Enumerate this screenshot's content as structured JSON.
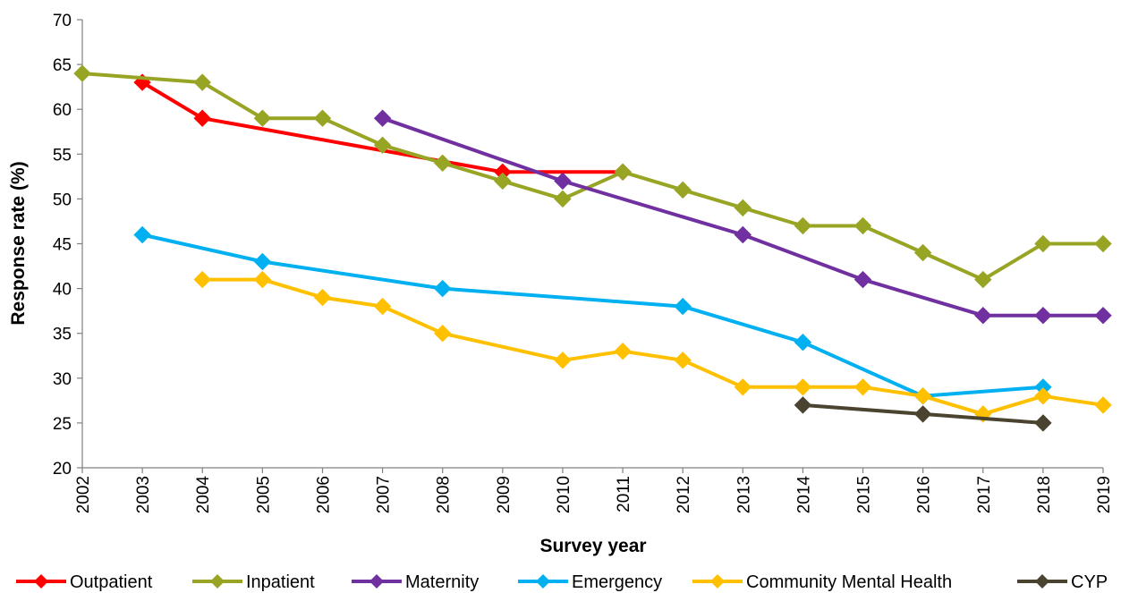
{
  "chart_data": {
    "type": "line",
    "xlabel": "Survey year",
    "ylabel": "Response rate (%)",
    "ylim": [
      20,
      70
    ],
    "yticks": [
      20,
      25,
      30,
      35,
      40,
      45,
      50,
      55,
      60,
      65,
      70
    ],
    "x": [
      "2002",
      "2003",
      "2004",
      "2005",
      "2006",
      "2007",
      "2008",
      "2009",
      "2010",
      "2011",
      "2012",
      "2013",
      "2014",
      "2015",
      "2016",
      "2017",
      "2018",
      "2019"
    ],
    "grid": false,
    "legend_position": "bottom",
    "series": [
      {
        "name": "Outpatient",
        "color": "#ff0000",
        "points": [
          {
            "x": "2003",
            "y": 63
          },
          {
            "x": "2004",
            "y": 59
          },
          {
            "x": "2009",
            "y": 53
          },
          {
            "x": "2011",
            "y": 53
          }
        ]
      },
      {
        "name": "Inpatient",
        "color": "#98a424",
        "points": [
          {
            "x": "2002",
            "y": 64
          },
          {
            "x": "2004",
            "y": 63
          },
          {
            "x": "2005",
            "y": 59
          },
          {
            "x": "2006",
            "y": 59
          },
          {
            "x": "2007",
            "y": 56
          },
          {
            "x": "2008",
            "y": 54
          },
          {
            "x": "2009",
            "y": 52
          },
          {
            "x": "2010",
            "y": 50
          },
          {
            "x": "2011",
            "y": 53
          },
          {
            "x": "2012",
            "y": 51
          },
          {
            "x": "2013",
            "y": 49
          },
          {
            "x": "2014",
            "y": 47
          },
          {
            "x": "2015",
            "y": 47
          },
          {
            "x": "2016",
            "y": 44
          },
          {
            "x": "2017",
            "y": 41
          },
          {
            "x": "2018",
            "y": 45
          },
          {
            "x": "2019",
            "y": 45
          }
        ]
      },
      {
        "name": "Maternity",
        "color": "#7030a0",
        "points": [
          {
            "x": "2007",
            "y": 59
          },
          {
            "x": "2010",
            "y": 52
          },
          {
            "x": "2013",
            "y": 46
          },
          {
            "x": "2015",
            "y": 41
          },
          {
            "x": "2017",
            "y": 37
          },
          {
            "x": "2018",
            "y": 37
          },
          {
            "x": "2019",
            "y": 37
          }
        ]
      },
      {
        "name": "Emergency",
        "color": "#00b0f0",
        "points": [
          {
            "x": "2003",
            "y": 46
          },
          {
            "x": "2005",
            "y": 43
          },
          {
            "x": "2008",
            "y": 40
          },
          {
            "x": "2012",
            "y": 38
          },
          {
            "x": "2014",
            "y": 34
          },
          {
            "x": "2016",
            "y": 28
          },
          {
            "x": "2018",
            "y": 29
          }
        ]
      },
      {
        "name": "Community Mental Health",
        "color": "#ffc000",
        "points": [
          {
            "x": "2004",
            "y": 41
          },
          {
            "x": "2005",
            "y": 41
          },
          {
            "x": "2006",
            "y": 39
          },
          {
            "x": "2007",
            "y": 38
          },
          {
            "x": "2008",
            "y": 35
          },
          {
            "x": "2010",
            "y": 32
          },
          {
            "x": "2011",
            "y": 33
          },
          {
            "x": "2012",
            "y": 32
          },
          {
            "x": "2013",
            "y": 29
          },
          {
            "x": "2014",
            "y": 29
          },
          {
            "x": "2015",
            "y": 29
          },
          {
            "x": "2016",
            "y": 28
          },
          {
            "x": "2017",
            "y": 26
          },
          {
            "x": "2018",
            "y": 28
          },
          {
            "x": "2019",
            "y": 27
          }
        ]
      },
      {
        "name": "CYP",
        "color": "#4a4330",
        "points": [
          {
            "x": "2014",
            "y": 27
          },
          {
            "x": "2016",
            "y": 26
          },
          {
            "x": "2018",
            "y": 25
          }
        ]
      }
    ]
  }
}
